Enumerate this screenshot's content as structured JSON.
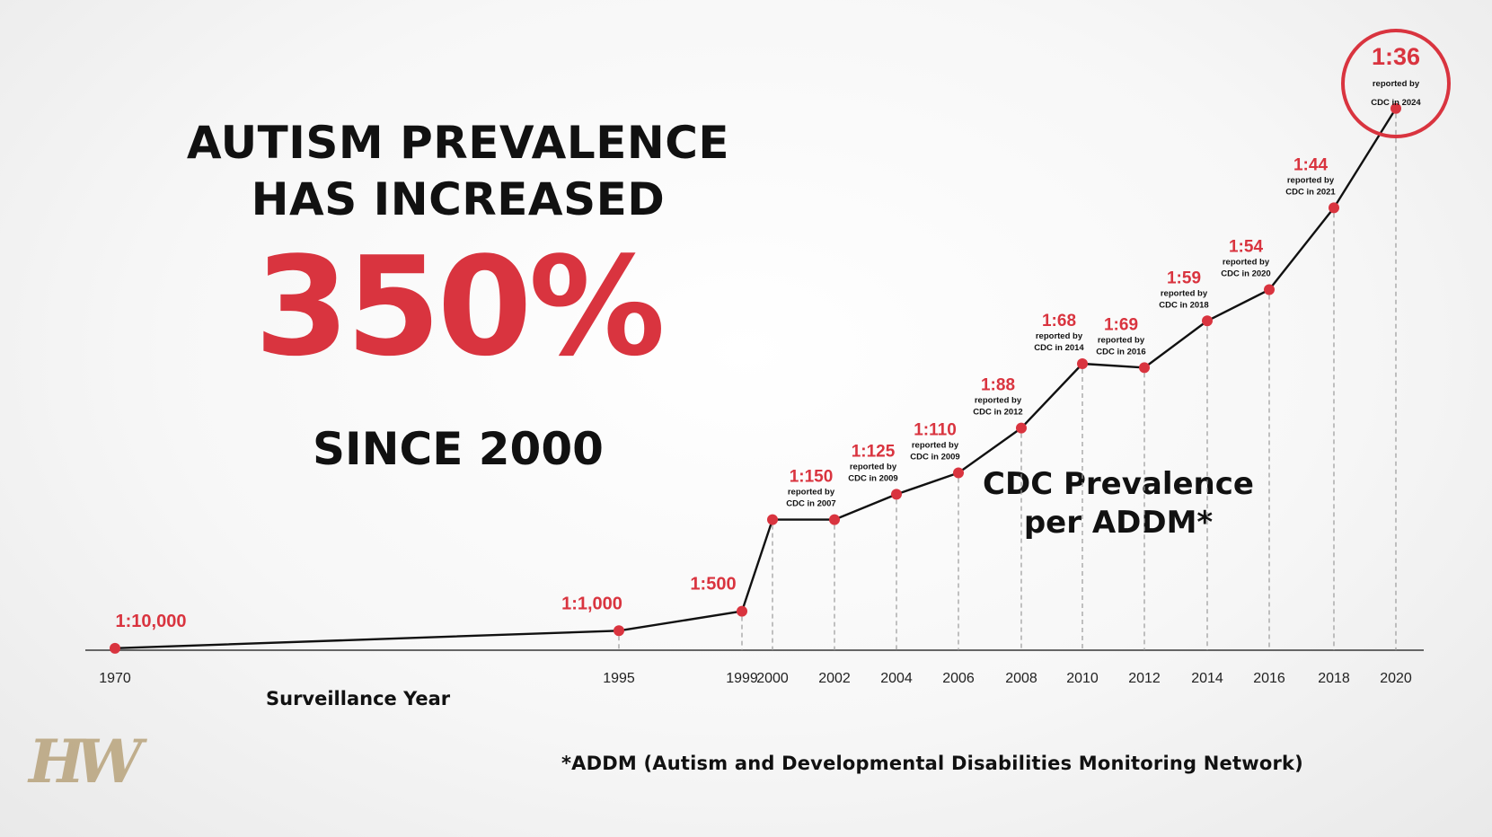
{
  "headline": {
    "line1": "AUTISM PREVALENCE",
    "line2": "HAS INCREASED",
    "percent": "350%",
    "since": "SINCE 2000"
  },
  "series_label": {
    "line1": "CDC Prevalence",
    "line2": "per ADDM*"
  },
  "footnote": "*ADDM (Autism and Developmental Disabilities Monitoring Network)",
  "logo_text": "HW",
  "colors": {
    "accent": "#d9343f",
    "line": "#111111",
    "logo": "#b8a37c"
  },
  "chart_data": {
    "type": "line",
    "xlabel": "Surveillance Year",
    "ylabel": "",
    "categories": [
      "1970",
      "1995",
      "1999",
      "2000",
      "2002",
      "2004",
      "2006",
      "2008",
      "2010",
      "2012",
      "2014",
      "2016",
      "2018",
      "2020"
    ],
    "series": [
      {
        "values_ratio": [
          "1:10,000",
          "1:1,000",
          "1:500",
          "1:150",
          "1:150",
          "1:125",
          "1:110",
          "1:88",
          "1:68",
          "1:69",
          "1:59",
          "1:54",
          "1:44",
          "1:36"
        ],
        "values_per_1000": [
          0.1,
          1.0,
          2.0,
          6.7,
          6.7,
          8.0,
          9.1,
          11.4,
          14.7,
          14.5,
          16.9,
          18.5,
          22.7,
          27.8
        ]
      }
    ],
    "point_labels": [
      {
        "ratio": "1:10,000",
        "note1": "",
        "note2": ""
      },
      {
        "ratio": "1:1,000",
        "note1": "",
        "note2": ""
      },
      {
        "ratio": "1:500",
        "note1": "",
        "note2": ""
      },
      {
        "ratio": "",
        "note1": "",
        "note2": ""
      },
      {
        "ratio": "1:150",
        "note1": "reported by",
        "note2": "CDC in 2007"
      },
      {
        "ratio": "1:125",
        "note1": "reported by",
        "note2": "CDC in 2009"
      },
      {
        "ratio": "1:110",
        "note1": "reported by",
        "note2": "CDC in 2009"
      },
      {
        "ratio": "1:88",
        "note1": "reported by",
        "note2": "CDC in 2012"
      },
      {
        "ratio": "1:68",
        "note1": "reported by",
        "note2": "CDC in 2014"
      },
      {
        "ratio": "1:69",
        "note1": "reported by",
        "note2": "CDC in 2016"
      },
      {
        "ratio": "1:59",
        "note1": "reported by",
        "note2": "CDC in 2018"
      },
      {
        "ratio": "1:54",
        "note1": "reported by",
        "note2": "CDC in 2020"
      },
      {
        "ratio": "1:44",
        "note1": "reported by",
        "note2": "CDC in 2021"
      },
      {
        "ratio": "1:36",
        "note1": "reported by",
        "note2": "CDC in 2024"
      }
    ],
    "highlight_index": 13,
    "grid": "dashed vertical drop lines",
    "legend": "none"
  }
}
